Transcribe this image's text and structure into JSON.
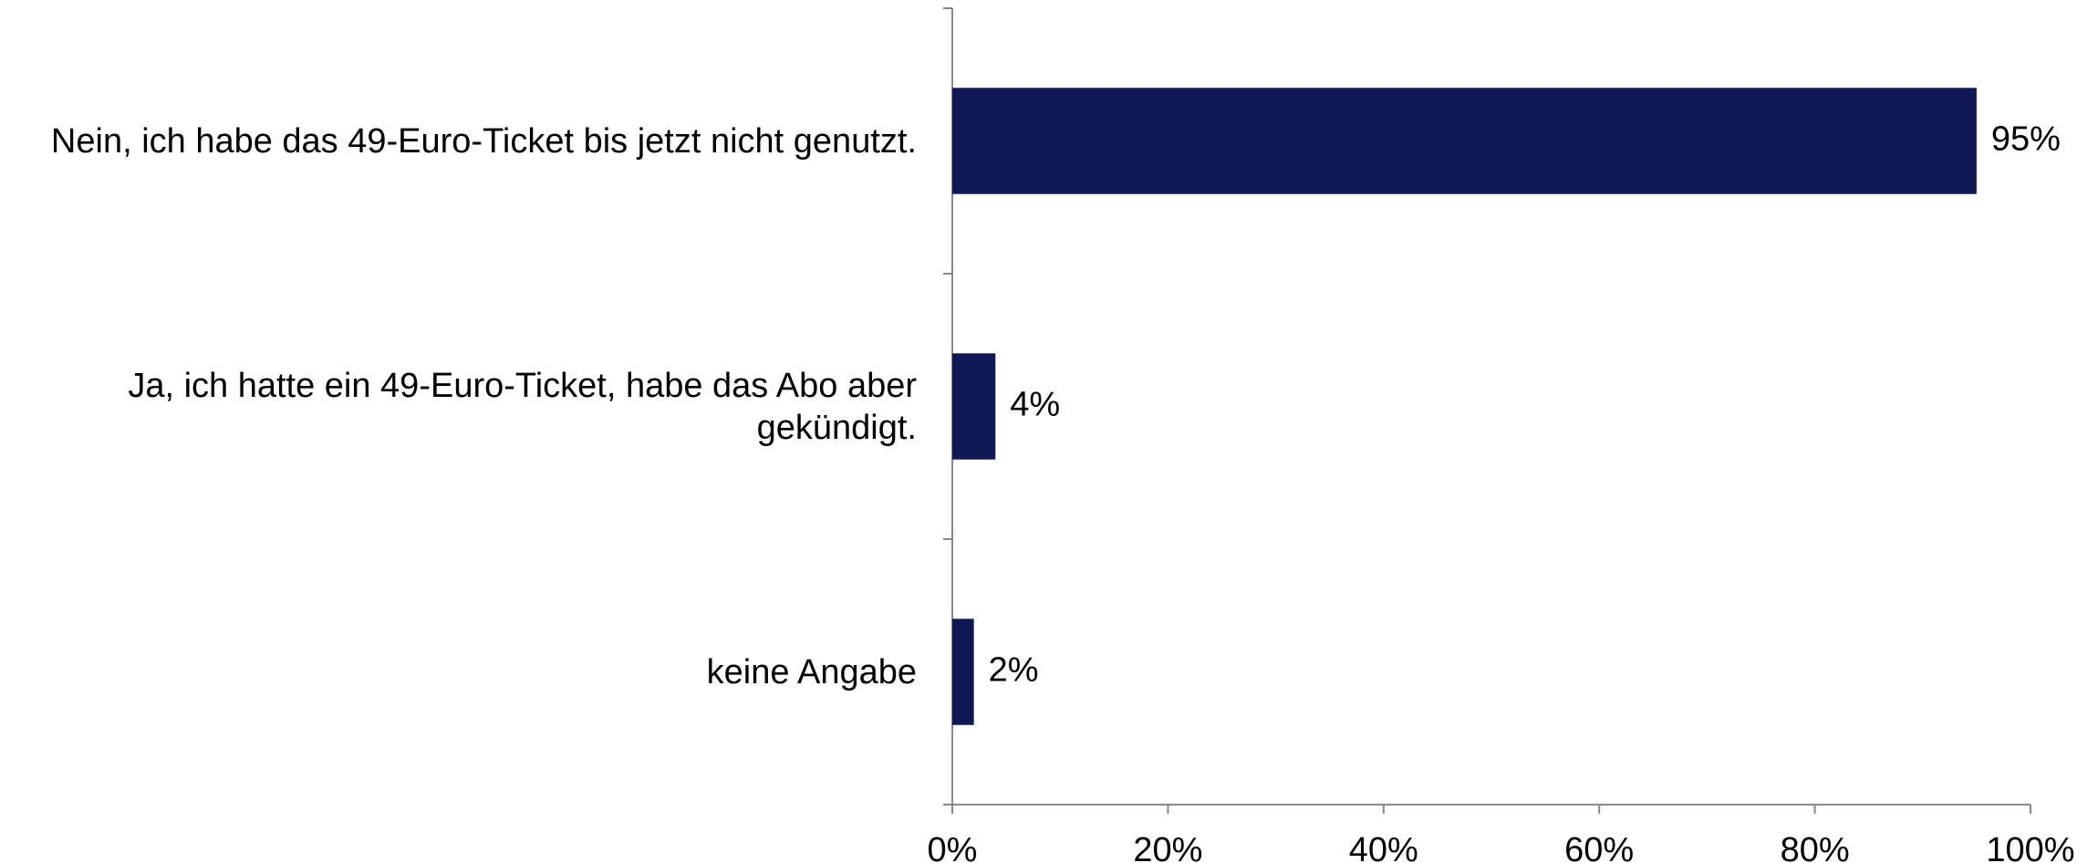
{
  "chart_data": {
    "type": "bar",
    "orientation": "horizontal",
    "categories": [
      "Nein, ich habe das 49-Euro-Ticket bis jetzt nicht genutzt.",
      "Ja, ich hatte ein 49-Euro-Ticket, habe das Abo aber gekündigt.",
      "keine Angabe"
    ],
    "values": [
      95,
      4,
      2
    ],
    "value_labels": [
      "95%",
      "4%",
      "2%"
    ],
    "color": "#0f1954",
    "xlim": [
      0,
      100
    ],
    "xticks": [
      {
        "value": 0,
        "label": "0%"
      },
      {
        "value": 20,
        "label": "20%"
      },
      {
        "value": 40,
        "label": "40%"
      },
      {
        "value": 60,
        "label": "60%"
      },
      {
        "value": 80,
        "label": "80%"
      },
      {
        "value": 100,
        "label": "100%"
      }
    ],
    "grid": false
  }
}
